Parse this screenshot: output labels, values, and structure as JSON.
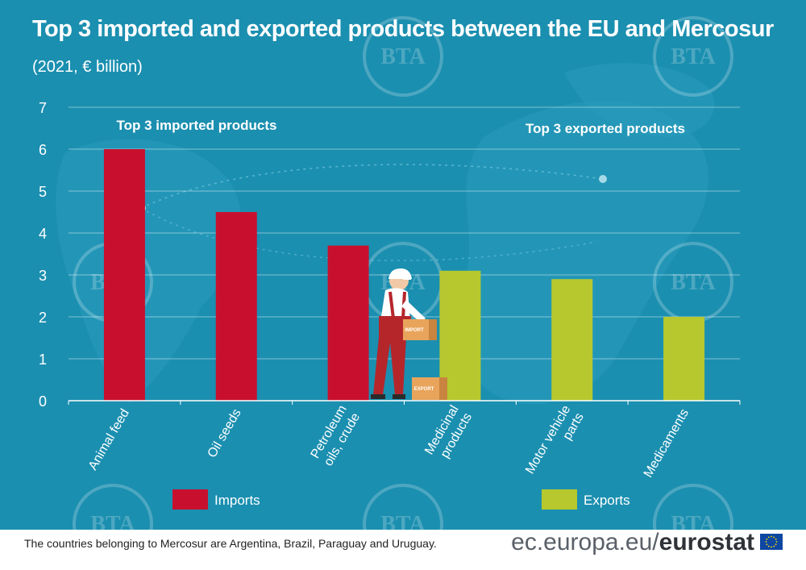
{
  "title": "Top 3 imported and exported products between the EU and Mercosur",
  "subtitle": "(2021, € billion)",
  "chart_data": {
    "type": "bar",
    "title": "Top 3 imported and exported products between the EU and Mercosur",
    "subtitle": "(2021, € billion)",
    "xlabel": "",
    "ylabel": "",
    "ylim": [
      0,
      7
    ],
    "yticks": [
      "0",
      "1",
      "2",
      "3",
      "4",
      "5",
      "6",
      "7"
    ],
    "grid": true,
    "categories": [
      "Animal feed",
      "Oil seeds",
      "Petroleum oils, crude",
      "Medicinal products",
      "Motor vehicle parts",
      "Medicaments"
    ],
    "category_lines": [
      [
        "Animal feed"
      ],
      [
        "Oil seeds"
      ],
      [
        "Petroleum",
        "oils, crude"
      ],
      [
        "Medicinal",
        "products"
      ],
      [
        "Motor vehicle",
        "parts"
      ],
      [
        "Medicaments"
      ]
    ],
    "values": [
      6.0,
      4.5,
      3.7,
      3.1,
      2.9,
      2.0
    ],
    "bar_groups": [
      "Imports",
      "Imports",
      "Imports",
      "Exports",
      "Exports",
      "Exports"
    ],
    "group_labels": [
      "Top 3 imported products",
      "Top 3 exported products"
    ],
    "legend": [
      {
        "name": "Imports",
        "color": "#c8102e"
      },
      {
        "name": "Exports",
        "color": "#b6c82e"
      }
    ],
    "legend_position": "bottom"
  },
  "illustration": {
    "box_labels": [
      "IMPORT",
      "EXPORT"
    ]
  },
  "watermark": "BTA",
  "footnote": "The countries belonging to Mercosur are Argentina, Brazil, Paraguay and Uruguay.",
  "logo": {
    "domain": "ec.europa.eu/",
    "brand": "eurostat"
  },
  "colors": {
    "background": "#1b8fb0",
    "imports": "#c8102e",
    "exports": "#b6c82e",
    "text": "#ffffff"
  }
}
